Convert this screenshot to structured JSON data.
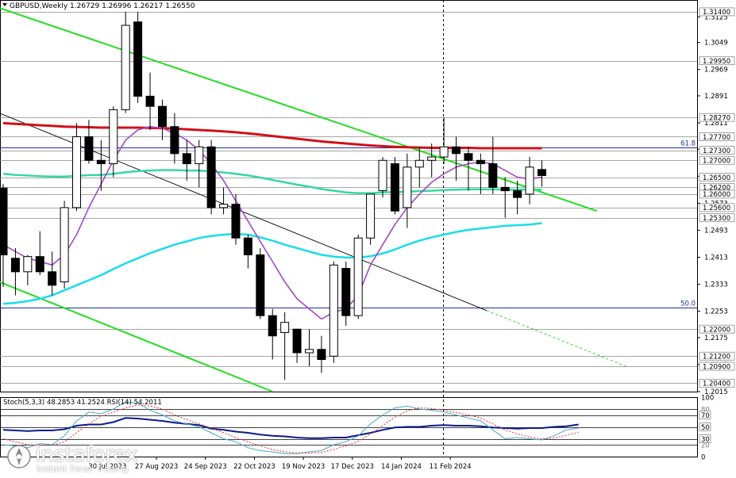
{
  "chart_data": [
    {
      "type": "candlestick",
      "title": "GBPUSD,Weekly",
      "ohlc_readout": [
        "1.26729",
        "1.26996",
        "1.26217",
        "1.26550"
      ],
      "ylim": [
        1.2015,
        1.3175
      ],
      "y_ticks": [
        "1.3125",
        "1.3049",
        "1.2969",
        "1.2891",
        "1.2811",
        "1.2733",
        "1.2653",
        "1.2573",
        "1.2493",
        "1.2413",
        "1.2333",
        "1.2253",
        "1.2175",
        "1.2095",
        "1.2015"
      ],
      "price_levels": [
        {
          "label": "1.31400",
          "value": 1.314
        },
        {
          "label": "1.29950",
          "value": 1.2995
        },
        {
          "label": "1.28270",
          "value": 1.2827
        },
        {
          "label": "1.27700",
          "value": 1.277
        },
        {
          "label": "1.27300",
          "value": 1.273
        },
        {
          "label": "1.27000",
          "value": 1.27
        },
        {
          "label": "1.26500",
          "value": 1.265
        },
        {
          "label": "1.26200",
          "value": 1.262
        },
        {
          "label": "1.26000",
          "value": 1.26
        },
        {
          "label": "1.25600",
          "value": 1.256
        },
        {
          "label": "1.25300",
          "value": 1.253
        },
        {
          "label": "1.22000",
          "value": 1.22
        },
        {
          "label": "1.21200",
          "value": 1.212
        },
        {
          "label": "1.20900",
          "value": 1.209
        },
        {
          "label": "1.20400",
          "value": 1.204
        }
      ],
      "fib_levels": [
        {
          "label": "61.8",
          "value": 1.2738
        },
        {
          "label": "50.0",
          "value": 1.2265
        }
      ],
      "x_ticks": [
        "30 Jul 2023",
        "27 Aug 2023",
        "24 Sep 2023",
        "22 Oct 2023",
        "19 Nov 2023",
        "17 Dec 2023",
        "14 Jan 2024",
        "11 Feb 2024"
      ],
      "candles": [
        {
          "o": 1.2618,
          "h": 1.263,
          "l": 1.2325,
          "c": 1.242
        },
        {
          "o": 1.241,
          "h": 1.244,
          "l": 1.23,
          "c": 1.237
        },
        {
          "o": 1.237,
          "h": 1.242,
          "l": 1.233,
          "c": 1.2415
        },
        {
          "o": 1.2415,
          "h": 1.249,
          "l": 1.236,
          "c": 1.237
        },
        {
          "o": 1.237,
          "h": 1.243,
          "l": 1.23,
          "c": 1.233
        },
        {
          "o": 1.234,
          "h": 1.258,
          "l": 1.232,
          "c": 1.256
        },
        {
          "o": 1.256,
          "h": 1.281,
          "l": 1.255,
          "c": 1.277
        },
        {
          "o": 1.277,
          "h": 1.282,
          "l": 1.269,
          "c": 1.27
        },
        {
          "o": 1.27,
          "h": 1.276,
          "l": 1.261,
          "c": 1.269
        },
        {
          "o": 1.269,
          "h": 1.286,
          "l": 1.265,
          "c": 1.285
        },
        {
          "o": 1.285,
          "h": 1.314,
          "l": 1.284,
          "c": 1.31
        },
        {
          "o": 1.311,
          "h": 1.314,
          "l": 1.287,
          "c": 1.289
        },
        {
          "o": 1.289,
          "h": 1.296,
          "l": 1.279,
          "c": 1.286
        },
        {
          "o": 1.286,
          "h": 1.288,
          "l": 1.276,
          "c": 1.28
        },
        {
          "o": 1.28,
          "h": 1.284,
          "l": 1.269,
          "c": 1.272
        },
        {
          "o": 1.272,
          "h": 1.276,
          "l": 1.264,
          "c": 1.269
        },
        {
          "o": 1.269,
          "h": 1.276,
          "l": 1.262,
          "c": 1.274
        },
        {
          "o": 1.274,
          "h": 1.276,
          "l": 1.254,
          "c": 1.256
        },
        {
          "o": 1.256,
          "h": 1.262,
          "l": 1.254,
          "c": 1.257
        },
        {
          "o": 1.257,
          "h": 1.26,
          "l": 1.245,
          "c": 1.247
        },
        {
          "o": 1.247,
          "h": 1.248,
          "l": 1.238,
          "c": 1.242
        },
        {
          "o": 1.242,
          "h": 1.244,
          "l": 1.223,
          "c": 1.224
        },
        {
          "o": 1.224,
          "h": 1.226,
          "l": 1.211,
          "c": 1.218
        },
        {
          "o": 1.219,
          "h": 1.225,
          "l": 1.205,
          "c": 1.222
        },
        {
          "o": 1.22,
          "h": 1.22,
          "l": 1.21,
          "c": 1.213
        },
        {
          "o": 1.213,
          "h": 1.22,
          "l": 1.209,
          "c": 1.214
        },
        {
          "o": 1.214,
          "h": 1.218,
          "l": 1.207,
          "c": 1.211
        },
        {
          "o": 1.212,
          "h": 1.24,
          "l": 1.21,
          "c": 1.239
        },
        {
          "o": 1.238,
          "h": 1.24,
          "l": 1.221,
          "c": 1.224
        },
        {
          "o": 1.224,
          "h": 1.248,
          "l": 1.223,
          "c": 1.247
        },
        {
          "o": 1.247,
          "h": 1.26,
          "l": 1.245,
          "c": 1.26
        },
        {
          "o": 1.261,
          "h": 1.271,
          "l": 1.259,
          "c": 1.27
        },
        {
          "o": 1.269,
          "h": 1.271,
          "l": 1.254,
          "c": 1.255
        },
        {
          "o": 1.256,
          "h": 1.272,
          "l": 1.25,
          "c": 1.268
        },
        {
          "o": 1.268,
          "h": 1.274,
          "l": 1.262,
          "c": 1.27
        },
        {
          "o": 1.27,
          "h": 1.275,
          "l": 1.265,
          "c": 1.271
        },
        {
          "o": 1.271,
          "h": 1.2827,
          "l": 1.269,
          "c": 1.274
        },
        {
          "o": 1.274,
          "h": 1.277,
          "l": 1.264,
          "c": 1.272
        },
        {
          "o": 1.272,
          "h": 1.274,
          "l": 1.261,
          "c": 1.27
        },
        {
          "o": 1.27,
          "h": 1.272,
          "l": 1.26,
          "c": 1.269
        },
        {
          "o": 1.269,
          "h": 1.277,
          "l": 1.26,
          "c": 1.262
        },
        {
          "o": 1.262,
          "h": 1.265,
          "l": 1.253,
          "c": 1.261
        },
        {
          "o": 1.261,
          "h": 1.264,
          "l": 1.254,
          "c": 1.259
        },
        {
          "o": 1.26,
          "h": 1.271,
          "l": 1.257,
          "c": 1.268
        },
        {
          "o": 1.2673,
          "h": 1.27,
          "l": 1.2622,
          "c": 1.2655
        }
      ],
      "ema_red": [
        1.281,
        1.2808,
        1.2806,
        1.2804,
        1.2802,
        1.28,
        1.2799,
        1.2798,
        1.2797,
        1.2797,
        1.2797,
        1.2797,
        1.2796,
        1.2795,
        1.2794,
        1.2792,
        1.279,
        1.2788,
        1.2786,
        1.2783,
        1.278,
        1.2776,
        1.2772,
        1.2768,
        1.2764,
        1.276,
        1.2756,
        1.2753,
        1.275,
        1.2747,
        1.2744,
        1.2742,
        1.274,
        1.2739,
        1.2738,
        1.2737,
        1.2737,
        1.2737,
        1.2737,
        1.2736,
        1.2736,
        1.2736,
        1.2736,
        1.2736,
        1.2736
      ],
      "ema_green": [
        1.266,
        1.2657,
        1.2655,
        1.2653,
        1.2652,
        1.2652,
        1.2654,
        1.2656,
        1.2657,
        1.266,
        1.2665,
        1.2668,
        1.267,
        1.2671,
        1.2671,
        1.267,
        1.267,
        1.2667,
        1.2664,
        1.266,
        1.2655,
        1.2649,
        1.2642,
        1.2635,
        1.2628,
        1.2622,
        1.2615,
        1.261,
        1.2605,
        1.2603,
        1.2603,
        1.2605,
        1.2606,
        1.2607,
        1.2609,
        1.261,
        1.2612,
        1.2613,
        1.2614,
        1.2614,
        1.2614,
        1.2613,
        1.2613,
        1.2613,
        1.2613
      ],
      "ema_cyan": [
        1.2275,
        1.2278,
        1.2283,
        1.229,
        1.23,
        1.2315,
        1.233,
        1.2345,
        1.236,
        1.2378,
        1.2395,
        1.241,
        1.2425,
        1.2438,
        1.245,
        1.246,
        1.247,
        1.2476,
        1.248,
        1.2482,
        1.248,
        1.2472,
        1.2462,
        1.245,
        1.244,
        1.243,
        1.242,
        1.2415,
        1.2412,
        1.2412,
        1.2416,
        1.2424,
        1.2436,
        1.245,
        1.2462,
        1.2472,
        1.248,
        1.2488,
        1.2494,
        1.2498,
        1.2502,
        1.2506,
        1.2508,
        1.251,
        1.2514
      ],
      "ma_violet": [
        1.245,
        1.243,
        1.241,
        1.24,
        1.239,
        1.242,
        1.248,
        1.256,
        1.263,
        1.27,
        1.276,
        1.279,
        1.28,
        1.2795,
        1.278,
        1.276,
        1.273,
        1.269,
        1.264,
        1.258,
        1.252,
        1.246,
        1.24,
        1.234,
        1.229,
        1.226,
        1.223,
        1.225,
        1.226,
        1.23,
        1.239,
        1.245,
        1.251,
        1.256,
        1.26,
        1.2635,
        1.266,
        1.268,
        1.269,
        1.2695,
        1.269,
        1.267,
        1.265,
        1.2645,
        1.265
      ],
      "trendlines": [
        {
          "color": "#22dd22",
          "from": [
            -1,
            1.316
          ],
          "to": [
            48.5,
            1.255
          ]
        },
        {
          "color": "#22dd22",
          "from": [
            -1,
            1.235
          ],
          "to": [
            22,
            1.2015
          ]
        },
        {
          "color": "#000000",
          "from": [
            -1,
            1.285
          ],
          "to": [
            39.5,
            1.2255
          ]
        },
        {
          "color": "#22dd22",
          "dashed": true,
          "from": [
            39.5,
            1.2255
          ],
          "to": [
            51,
            1.2088
          ]
        }
      ]
    },
    {
      "type": "line",
      "title": "Stoch(5,3,3) 48.2853 41.2524  RSI(14) 54.2011",
      "ylim": [
        0,
        100
      ],
      "y_ticks": [
        "100",
        "80",
        "70",
        "50",
        "30",
        "20",
        "0"
      ],
      "levels": [
        80,
        70,
        50,
        30,
        20
      ],
      "series": [
        {
          "name": "RSI(14)",
          "color": "#0a1a8a",
          "values": [
            45,
            44,
            43,
            44,
            44,
            46,
            52,
            54,
            54,
            58,
            65,
            64,
            62,
            60,
            57,
            55,
            53,
            47,
            45,
            42,
            40,
            37,
            35,
            34,
            32,
            31,
            31,
            32,
            32,
            36,
            40,
            45,
            49,
            50,
            50,
            52,
            53,
            52,
            52,
            51,
            49,
            48,
            47,
            48,
            48,
            50,
            51,
            54
          ]
        },
        {
          "color": "#4aa8c8",
          "values": [
            20,
            18,
            15,
            22,
            20,
            35,
            60,
            75,
            72,
            80,
            92,
            90,
            78,
            70,
            60,
            55,
            50,
            40,
            30,
            25,
            15,
            10,
            8,
            5,
            5,
            8,
            10,
            20,
            25,
            35,
            55,
            70,
            82,
            85,
            80,
            78,
            75,
            70,
            65,
            60,
            45,
            30,
            32,
            30,
            28,
            35,
            45,
            48
          ]
        },
        {
          "color": "#e03030",
          "dashed": true,
          "values": [
            30,
            25,
            20,
            19,
            19,
            25,
            40,
            55,
            68,
            75,
            82,
            87,
            85,
            80,
            70,
            62,
            55,
            48,
            40,
            32,
            25,
            18,
            12,
            8,
            6,
            6,
            7,
            12,
            18,
            26,
            38,
            52,
            66,
            77,
            82,
            81,
            78,
            74,
            70,
            65,
            55,
            45,
            38,
            33,
            30,
            31,
            36,
            41
          ]
        }
      ],
      "x_ticks": [
        "30 Jul 2023",
        "27 Aug 2023",
        "24 Sep 2023",
        "22 Oct 2023",
        "19 Nov 2023",
        "17 Dec 2023",
        "14 Jan 2024",
        "11 Feb 2024"
      ]
    }
  ],
  "watermark": {
    "name": "instaforex",
    "sub": "Instant Forex Trading"
  }
}
